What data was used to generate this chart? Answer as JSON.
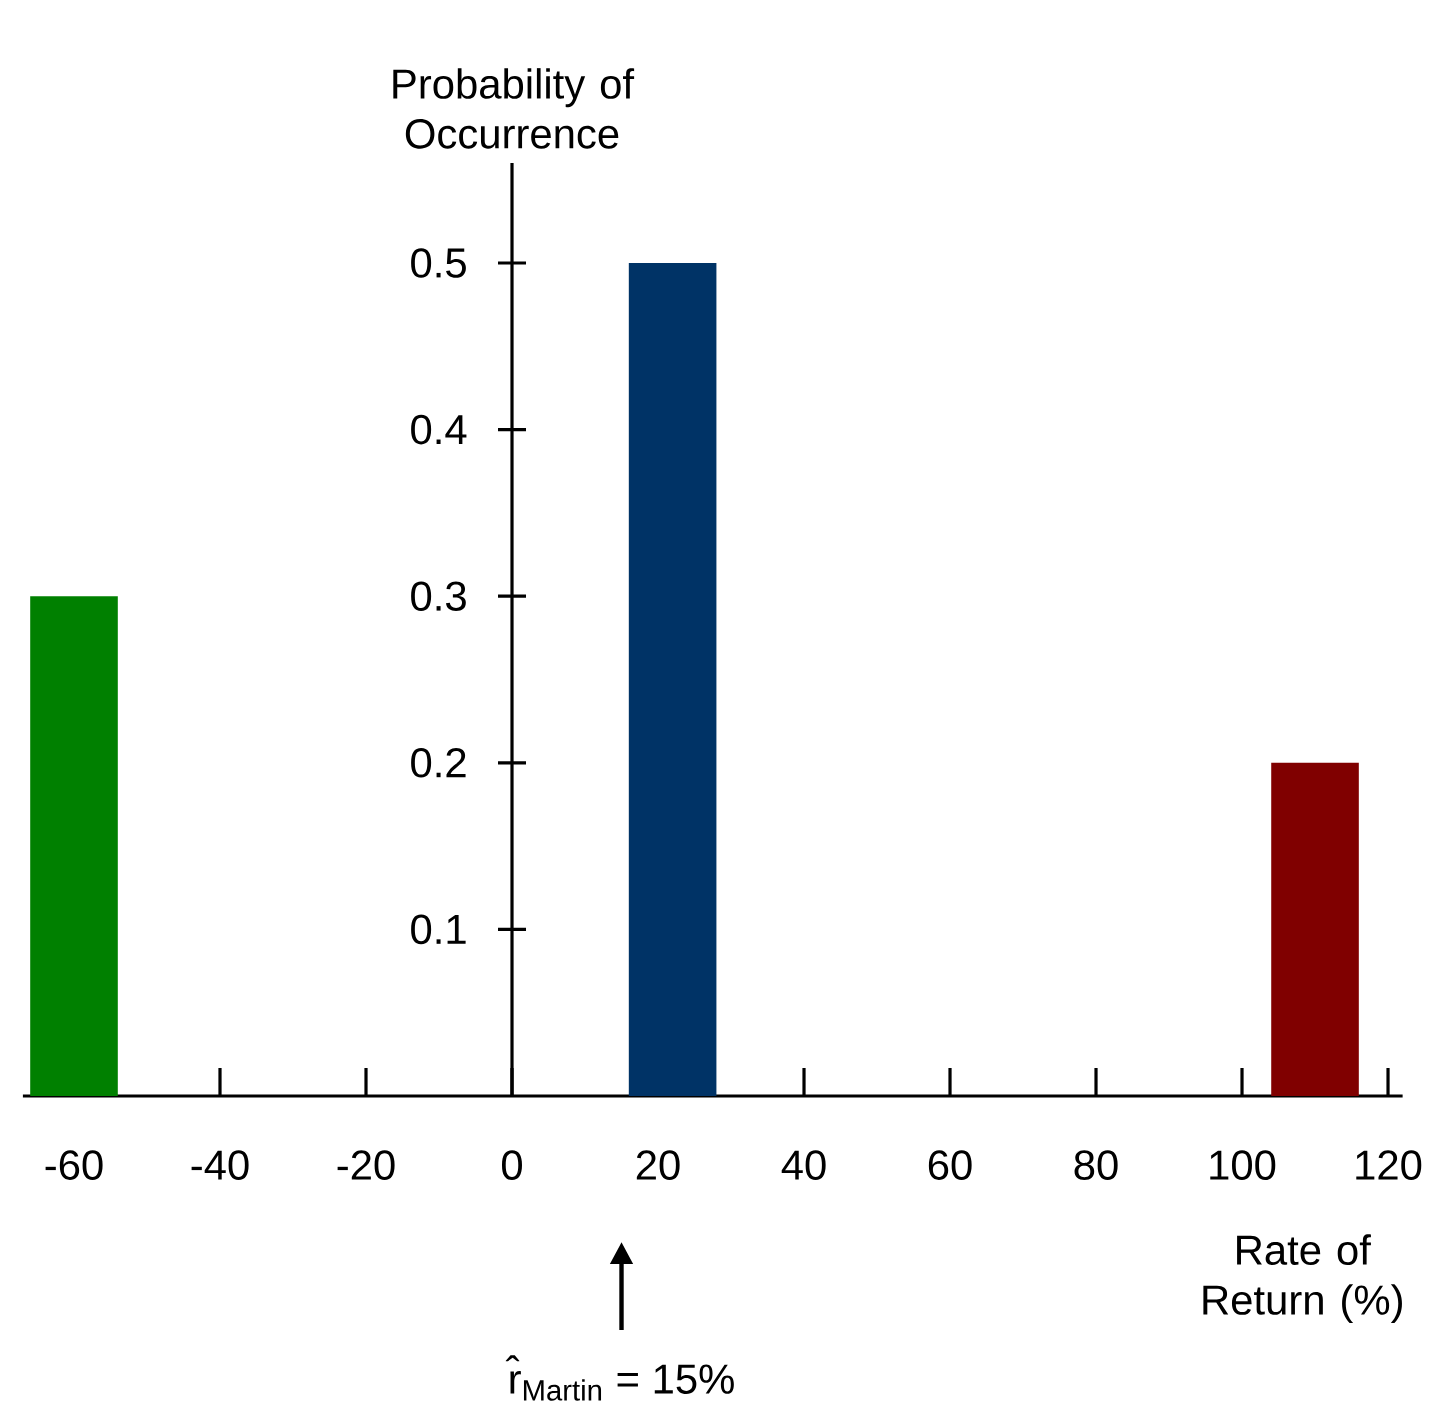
{
  "chart_data": {
    "type": "bar",
    "ylabel": "Probability of Occurrence",
    "xlabel": "Rate of Return (%)",
    "x": [
      -60,
      22,
      110
    ],
    "values": [
      0.3,
      0.5,
      0.2
    ],
    "colors": [
      "#008000",
      "#003366",
      "#800000"
    ],
    "xlim": [
      -67,
      122
    ],
    "xticks": [
      -60,
      -40,
      -20,
      0,
      20,
      40,
      60,
      80,
      100,
      120
    ],
    "ylim": [
      0,
      0.56
    ],
    "yticks": [
      0.1,
      0.2,
      0.3,
      0.4,
      0.5
    ],
    "annotations": [
      "r̂$_{Martin}$ = 15%"
    ]
  }
}
